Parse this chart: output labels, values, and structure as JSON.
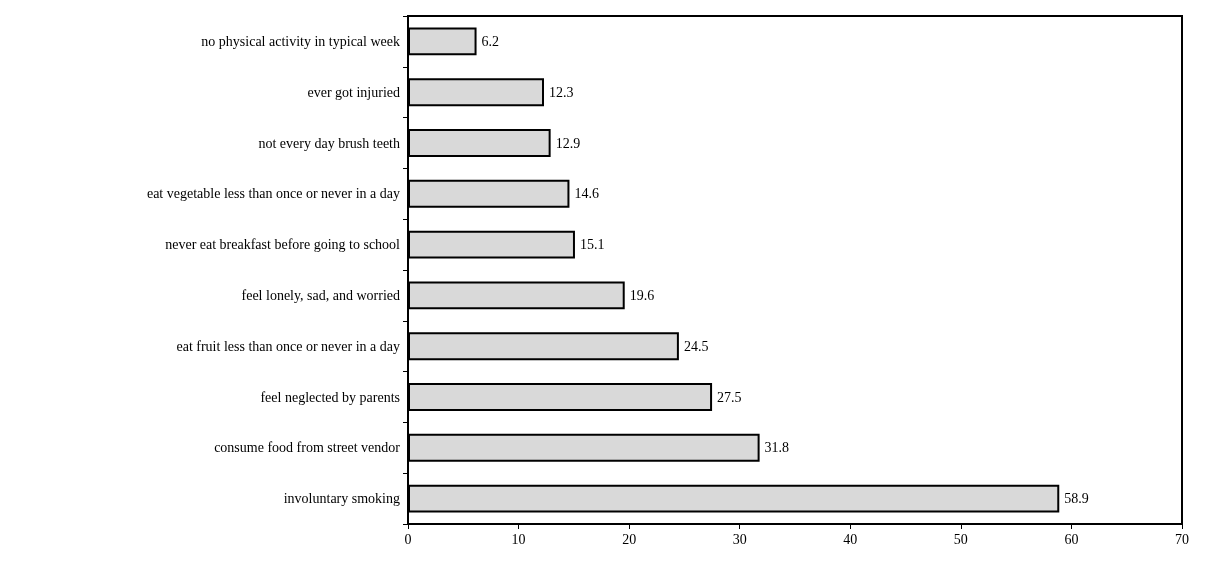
{
  "chart_data": {
    "type": "bar",
    "orientation": "horizontal",
    "categories": [
      "no physical activity in typical week",
      "ever got injuried",
      "not every day brush teeth",
      "eat vegetable less than once or never in a day",
      "never eat breakfast before going to school",
      "feel lonely, sad, and worried",
      "eat fruit less than once or never in a day",
      "feel neglected by parents",
      "consume food from street vendor",
      "involuntary smoking"
    ],
    "values": [
      6.2,
      12.3,
      12.9,
      14.6,
      15.1,
      19.6,
      24.5,
      27.5,
      31.8,
      58.9
    ],
    "color": "#d9d9d9",
    "xlim": [
      0,
      70
    ],
    "xticks": [
      0,
      10,
      20,
      30,
      40,
      50,
      60,
      70
    ],
    "data_labels": true,
    "grid": false
  }
}
